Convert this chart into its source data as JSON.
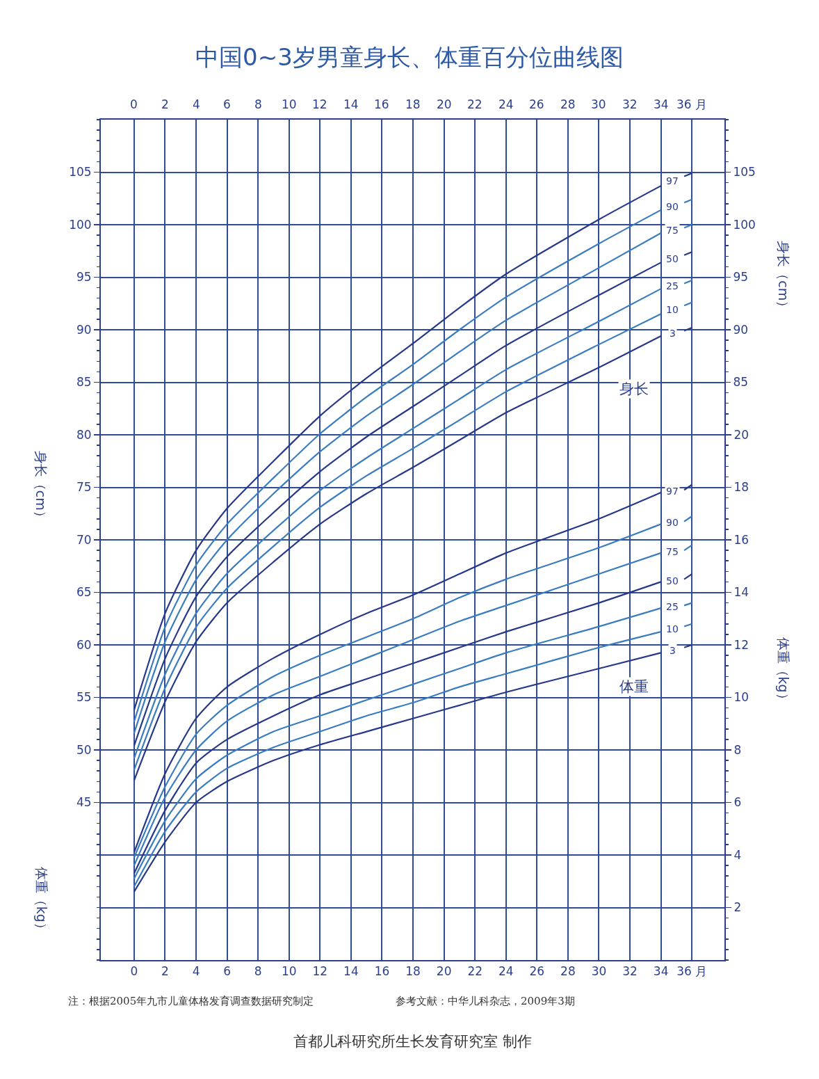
{
  "chart_data": {
    "type": "line",
    "title": "中国0~3岁男童身长、体重百分位曲线图",
    "x": [
      0,
      2,
      4,
      6,
      9,
      12,
      15,
      18,
      21,
      24,
      30,
      34,
      35,
      35.5,
      36
    ],
    "xlim": [
      -2.15,
      38.1
    ],
    "xticks": [
      0,
      2,
      4,
      6,
      8,
      10,
      12,
      14,
      16,
      18,
      20,
      22,
      24,
      26,
      28,
      30,
      32,
      34,
      {
        "value": 36,
        "label": "36 月"
      }
    ],
    "x2lim": [
      -2.15,
      38.1
    ],
    "x2ticks": [
      0,
      2,
      4,
      6,
      8,
      10,
      12,
      14,
      16,
      18,
      20,
      22,
      24,
      26,
      28,
      30,
      32,
      34,
      {
        "value": 36,
        "label": "36 月"
      }
    ],
    "ylabel": "身长（cm）",
    "ylim": [
      30,
      110
    ],
    "yticks": [
      45,
      50,
      55,
      60,
      65,
      70,
      75,
      80,
      85,
      90,
      95,
      100,
      105
    ],
    "y2label": "体重（kg）",
    "y2lim": [
      0,
      32
    ],
    "y2ticks": [
      2,
      4,
      6,
      8,
      10,
      12,
      14,
      16,
      18,
      20
    ],
    "y3label": "身长（cm）",
    "y3lim": [
      30,
      110
    ],
    "y3ticks": [
      85,
      90,
      95,
      100,
      105
    ],
    "grid": true,
    "legend": false,
    "marker": "none",
    "line_style": "solid",
    "series": [
      {
        "name": "97",
        "color": "#26388a",
        "values": [
          53.8,
          63.0,
          69.0,
          73.0,
          77.5,
          81.8,
          85.4,
          88.7,
          92.1,
          95.3,
          100.5,
          103.7,
          null,
          104.6,
          104.9
        ]
      },
      {
        "name": "90",
        "color": "#3a7cc0",
        "values": [
          52.7,
          61.7,
          67.6,
          71.5,
          75.9,
          80.1,
          83.6,
          86.7,
          90.0,
          93.1,
          98.2,
          101.4,
          null,
          102.1,
          102.4
        ]
      },
      {
        "name": "75",
        "color": "#3a7cc0",
        "values": [
          51.6,
          60.3,
          66.2,
          70.0,
          74.4,
          78.4,
          81.8,
          84.8,
          87.9,
          90.9,
          95.9,
          99.2,
          null,
          99.7,
          100.0
        ]
      },
      {
        "name": "50",
        "color": "#26388a",
        "values": [
          50.4,
          58.7,
          64.6,
          68.4,
          72.6,
          76.5,
          79.8,
          82.7,
          85.6,
          88.5,
          93.3,
          96.4,
          null,
          97.1,
          97.4
        ]
      },
      {
        "name": "25",
        "color": "#3a7cc0",
        "values": [
          49.2,
          57.2,
          63.0,
          66.8,
          70.9,
          74.7,
          77.8,
          80.6,
          83.4,
          86.2,
          90.8,
          93.9,
          null,
          94.4,
          94.7
        ]
      },
      {
        "name": "10",
        "color": "#3a7cc0",
        "values": [
          48.1,
          55.9,
          61.7,
          65.4,
          69.4,
          73.1,
          76.1,
          78.7,
          81.4,
          84.1,
          88.6,
          91.5,
          null,
          92.3,
          92.6
        ]
      },
      {
        "name": "3",
        "color": "#26388a",
        "values": [
          47.1,
          54.6,
          60.3,
          64.0,
          67.9,
          71.5,
          74.4,
          76.9,
          79.5,
          82.1,
          86.4,
          89.4,
          null,
          89.9,
          90.2
        ]
      },
      {
        "name": "97",
        "color": "#26388a",
        "axis": "y2",
        "values": [
          4.1,
          7.1,
          9.2,
          10.4,
          11.5,
          12.4,
          13.2,
          13.9,
          14.7,
          15.5,
          16.8,
          17.8,
          null,
          17.9,
          18.1
        ]
      },
      {
        "name": "90",
        "color": "#3a7cc0",
        "axis": "y2",
        "values": [
          3.9,
          6.6,
          8.6,
          9.7,
          10.8,
          11.6,
          12.3,
          13.0,
          13.8,
          14.5,
          15.7,
          16.6,
          null,
          16.7,
          16.9
        ]
      },
      {
        "name": "75",
        "color": "#3a7cc0",
        "axis": "y2",
        "values": [
          3.6,
          6.2,
          8.0,
          9.1,
          10.1,
          10.8,
          11.5,
          12.2,
          12.9,
          13.5,
          14.7,
          15.5,
          null,
          15.6,
          15.8
        ]
      },
      {
        "name": "50",
        "color": "#26388a",
        "axis": "y2",
        "values": [
          3.3,
          5.7,
          7.5,
          8.4,
          9.3,
          10.1,
          10.7,
          11.3,
          11.9,
          12.5,
          13.6,
          14.4,
          null,
          14.5,
          14.7
        ]
      },
      {
        "name": "25",
        "color": "#3a7cc0",
        "axis": "y2",
        "values": [
          3.1,
          5.3,
          6.9,
          7.8,
          8.7,
          9.3,
          9.9,
          10.5,
          11.1,
          11.7,
          12.7,
          13.4,
          null,
          13.5,
          13.6
        ]
      },
      {
        "name": "10",
        "color": "#3a7cc0",
        "axis": "y2",
        "values": [
          2.8,
          4.9,
          6.4,
          7.3,
          8.1,
          8.7,
          9.3,
          9.8,
          10.4,
          10.9,
          11.9,
          12.5,
          null,
          12.7,
          12.8
        ]
      },
      {
        "name": "3",
        "color": "#26388a",
        "axis": "y2",
        "values": [
          2.6,
          4.5,
          6.0,
          6.8,
          7.6,
          8.2,
          8.7,
          9.2,
          9.7,
          10.2,
          11.1,
          11.7,
          null,
          11.9,
          12.0
        ]
      }
    ],
    "annotations": [
      "身长",
      "体重",
      "体重（kg）",
      "注：根据2005年九市儿童体格发育调查数据研究制定",
      "参考文献：中华儿科杂志，2009年3期",
      "首都儿科研究所生长发育研究室 制作"
    ]
  }
}
